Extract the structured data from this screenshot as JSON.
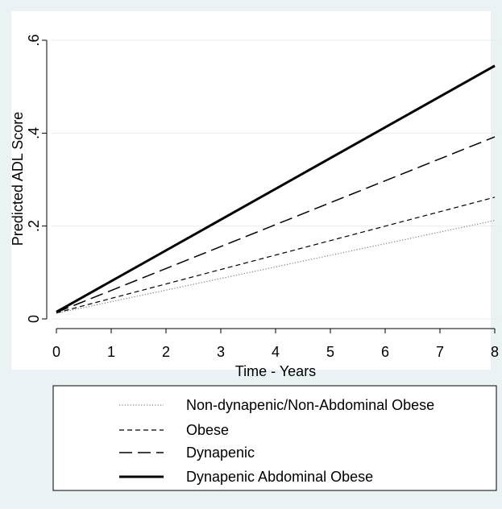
{
  "chart_data": {
    "type": "line",
    "title": "",
    "xlabel": "Time - Years",
    "ylabel": "Predicted ADL Score",
    "xlim": [
      0,
      8
    ],
    "ylim": [
      0,
      0.6
    ],
    "x_ticks": [
      0,
      1,
      2,
      3,
      4,
      5,
      6,
      7,
      8
    ],
    "y_ticks": [
      0,
      0.2,
      0.4,
      0.6
    ],
    "x_tick_labels": [
      "0",
      "1",
      "2",
      "3",
      "4",
      "5",
      "6",
      "7",
      "8"
    ],
    "y_tick_labels": [
      "0",
      ".2",
      ".4",
      ".6"
    ],
    "grid": "horizontal",
    "legend_placement": "bottom",
    "background": "#eaf2f3",
    "series": [
      {
        "name": "Non-dynapenic/Non-Abdominal Obese",
        "style": "dotted",
        "color": "#7f7f7f",
        "x": [
          0,
          8
        ],
        "y": [
          0.012,
          0.212
        ]
      },
      {
        "name": "Obese",
        "style": "short-dash",
        "color": "#000000",
        "x": [
          0,
          8
        ],
        "y": [
          0.013,
          0.262
        ]
      },
      {
        "name": "Dynapenic",
        "style": "long-dash",
        "color": "#000000",
        "x": [
          0,
          8
        ],
        "y": [
          0.014,
          0.392
        ]
      },
      {
        "name": "Dynapenic Abdominal Obese",
        "style": "solid-thick",
        "color": "#000000",
        "x": [
          0,
          8
        ],
        "y": [
          0.015,
          0.545
        ]
      }
    ]
  }
}
